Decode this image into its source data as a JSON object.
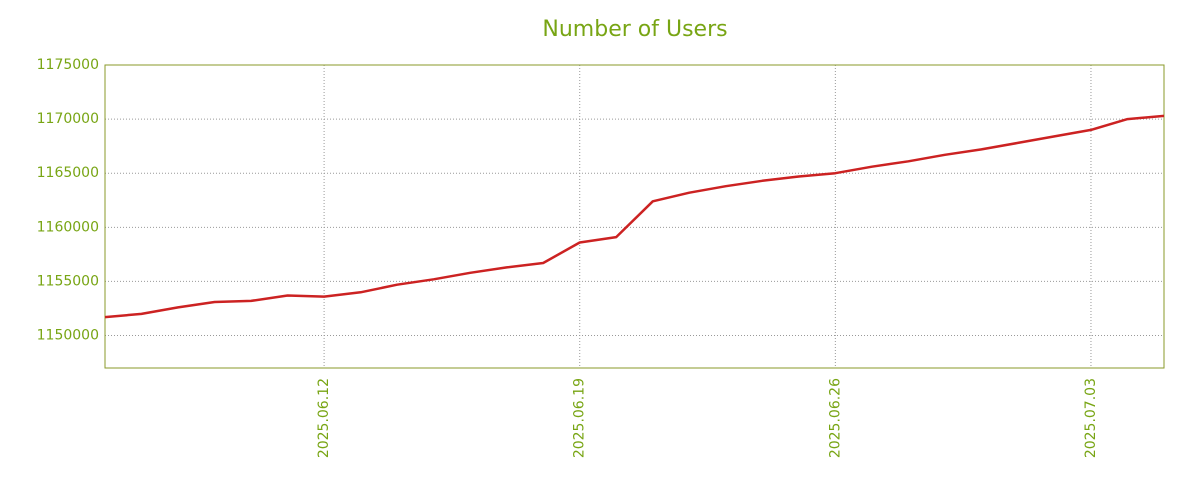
{
  "chart_data": {
    "type": "line",
    "title": "Number of Users",
    "x": [
      "2025.06.06",
      "2025.06.07",
      "2025.06.08",
      "2025.06.09",
      "2025.06.10",
      "2025.06.11",
      "2025.06.12",
      "2025.06.13",
      "2025.06.14",
      "2025.06.15",
      "2025.06.16",
      "2025.06.17",
      "2025.06.18",
      "2025.06.19",
      "2025.06.20",
      "2025.06.21",
      "2025.06.22",
      "2025.06.23",
      "2025.06.24",
      "2025.06.25",
      "2025.06.26",
      "2025.06.27",
      "2025.06.28",
      "2025.06.29",
      "2025.06.30",
      "2025.07.01",
      "2025.07.02",
      "2025.07.03",
      "2025.07.04",
      "2025.07.05"
    ],
    "series": [
      {
        "name": "Number of Users",
        "color": "#cc2222",
        "values": [
          1151700,
          1152000,
          1152600,
          1153100,
          1153200,
          1153700,
          1153600,
          1154000,
          1154700,
          1155200,
          1155800,
          1156300,
          1156700,
          1158600,
          1159100,
          1162400,
          1163200,
          1163800,
          1164300,
          1164700,
          1165000,
          1165600,
          1166100,
          1166700,
          1167200,
          1167800,
          1168400,
          1169000,
          1170000,
          1170300
        ]
      }
    ],
    "xlim": [
      "2025.06.06",
      "2025.07.05"
    ],
    "xticks": [
      "2025.06.12",
      "2025.06.19",
      "2025.06.26",
      "2025.07.03"
    ],
    "ylim": [
      1147000,
      1175000
    ],
    "yticks": [
      1150000,
      1155000,
      1160000,
      1165000,
      1170000,
      1175000
    ],
    "grid": true
  }
}
